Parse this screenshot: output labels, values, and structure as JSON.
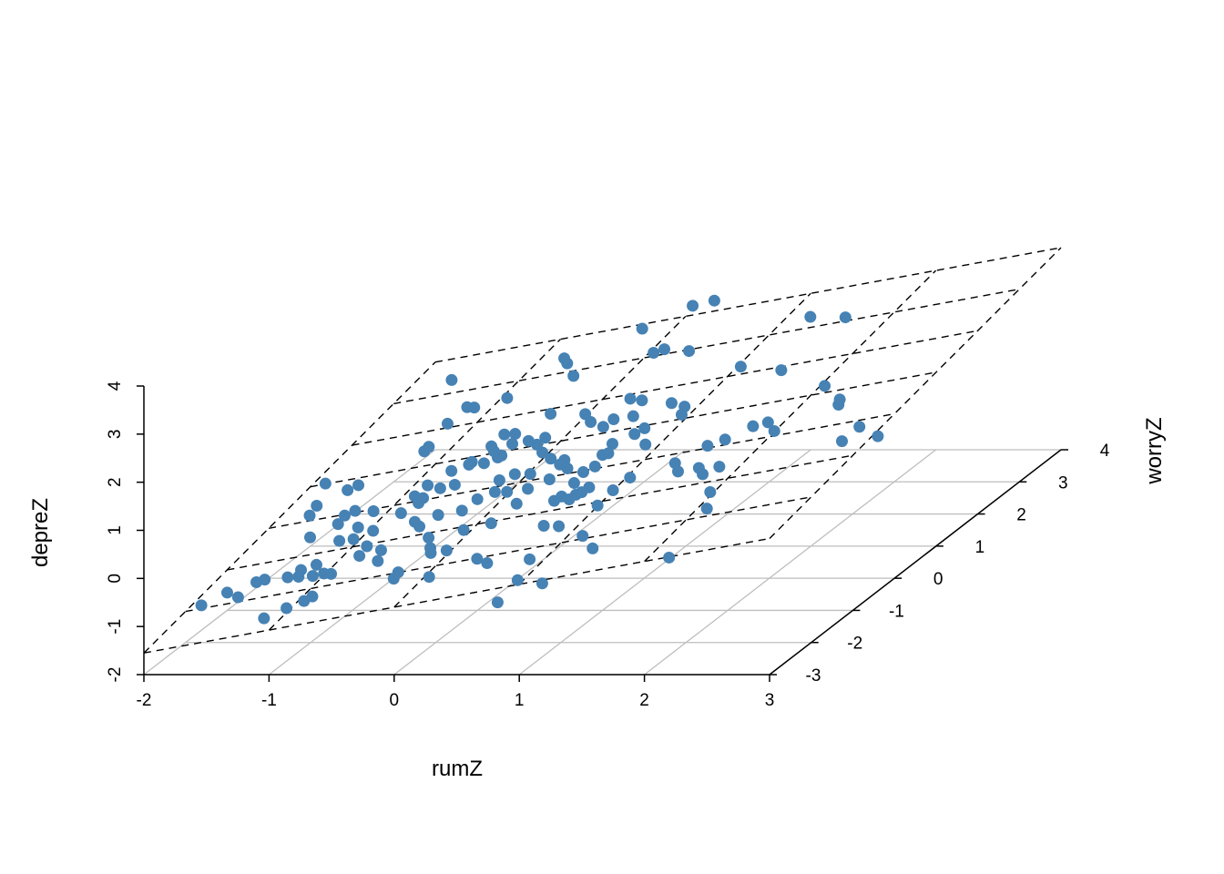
{
  "chart_data": {
    "type": "scatter3d",
    "xlabel": "rumZ",
    "ylabel": "worryZ",
    "zlabel": "depreZ",
    "xlim": [
      -2,
      3
    ],
    "ylim": [
      -3,
      4
    ],
    "zlim": [
      -2,
      4
    ],
    "x_ticks": [
      "-2",
      "-1",
      "0",
      "1",
      "2",
      "3"
    ],
    "y_ticks": [
      "-3",
      "-2",
      "-1",
      "0",
      "1",
      "2",
      "3",
      "4"
    ],
    "z_ticks": [
      "-2",
      "-1",
      "0",
      "1",
      "2",
      "3",
      "4"
    ],
    "grid": true,
    "point_color": "#4682B4",
    "grid_color": "#BEBEBE",
    "regression_plane": {
      "intercept": -0.01,
      "rumZ": 0.476,
      "worryZ": 0.196,
      "line_style": "dashed"
    },
    "points": [
      [
        -1.9,
        -1.92,
        -1.28
      ],
      [
        -1.77,
        -1.69,
        -1.17
      ],
      [
        -1.62,
        -1.88,
        -1.14
      ],
      [
        -1.59,
        -1.53,
        -1.06
      ],
      [
        -1.53,
        -1.51,
        -1.02
      ],
      [
        -1.16,
        -2.64,
        -1.07
      ],
      [
        -1.04,
        -2.46,
        -0.98
      ],
      [
        -1.33,
        -1.56,
        -0.94
      ],
      [
        -1.27,
        -1.42,
        -0.88
      ],
      [
        -1.23,
        -1.6,
        -0.9
      ],
      [
        -0.94,
        -2.34,
        -0.91
      ],
      [
        -0.9,
        -2.26,
        -0.87
      ],
      [
        -1.1,
        -1.65,
        -0.85
      ],
      [
        -1.17,
        -1.35,
        -0.82
      ],
      [
        -1.01,
        -1.65,
        -0.8
      ],
      [
        -0.94,
        -1.69,
        -0.78
      ],
      [
        -1.5,
        -0.51,
        -0.81
      ],
      [
        -1.72,
        0.14,
        -0.79
      ],
      [
        -1.75,
        0.4,
        -0.76
      ],
      [
        -1.88,
        1.0,
        -0.7
      ],
      [
        -1.36,
        -0.26,
        -0.7
      ],
      [
        -1.38,
        -0.04,
        -0.67
      ],
      [
        -1.18,
        -0.77,
        -0.71
      ],
      [
        -1.6,
        0.69,
        -0.63
      ],
      [
        -1.54,
        0.77,
        -0.58
      ],
      [
        -1.32,
        0.03,
        -0.62
      ],
      [
        -1.13,
        -0.47,
        -0.63
      ],
      [
        -1.06,
        -0.79,
        -0.66
      ],
      [
        -0.84,
        -1.31,
        -0.66
      ],
      [
        -0.86,
        -1.07,
        -0.62
      ],
      [
        -0.95,
        -0.65,
        -0.58
      ],
      [
        -1.14,
        -0.07,
        -0.56
      ],
      [
        -0.61,
        -1.56,
        -0.6
      ],
      [
        -0.68,
        -1.27,
        -0.57
      ],
      [
        -0.28,
        -2.17,
        -0.56
      ],
      [
        -0.3,
        -2.0,
        -0.54
      ],
      [
        -0.85,
        -0.28,
        -0.46
      ],
      [
        -0.63,
        -0.61,
        -0.42
      ],
      [
        -0.54,
        -0.77,
        -0.41
      ],
      [
        -0.78,
        -0.07,
        -0.39
      ],
      [
        -0.78,
        0.04,
        -0.36
      ],
      [
        -1.23,
        1.42,
        -0.31
      ],
      [
        -1.23,
        1.53,
        -0.29
      ],
      [
        -0.86,
        0.39,
        -0.33
      ],
      [
        -0.34,
        -1.15,
        -0.39
      ],
      [
        -0.22,
        -1.47,
        -0.39
      ],
      [
        -0.17,
        -1.61,
        -0.4
      ],
      [
        0.05,
        -2.31,
        -0.43
      ],
      [
        -0.47,
        -0.53,
        -0.33
      ],
      [
        -0.71,
        0.24,
        -0.29
      ],
      [
        -0.04,
        -1.62,
        -0.34
      ],
      [
        -1.66,
        3.37,
        -0.13
      ],
      [
        -1.27,
        2.1,
        -0.19
      ],
      [
        -0.77,
        0.69,
        -0.23
      ],
      [
        -0.6,
        0.26,
        -0.23
      ],
      [
        -0.28,
        -0.53,
        -0.24
      ],
      [
        -0.07,
        -1.12,
        -0.25
      ],
      [
        -1.24,
        2.48,
        -0.1
      ],
      [
        -1.17,
        2.44,
        -0.08
      ],
      [
        -0.66,
        0.78,
        -0.16
      ],
      [
        -0.66,
        0.85,
        -0.15
      ],
      [
        -0.24,
        -0.28,
        -0.17
      ],
      [
        0.34,
        -2.03,
        -0.24
      ],
      [
        0.48,
        -2.21,
        -0.21
      ],
      [
        0.13,
        -1.06,
        -0.15
      ],
      [
        -0.62,
        1.2,
        -0.06
      ],
      [
        -0.55,
        1.05,
        -0.06
      ],
      [
        0.97,
        -3.43,
        -0.21
      ],
      [
        -0.14,
        -0.16,
        -0.1
      ],
      [
        -0.21,
        0.16,
        -0.07
      ],
      [
        -0.43,
        0.87,
        -0.03
      ],
      [
        -0.94,
        2.54,
        0.05
      ],
      [
        -0.61,
        1.48,
        0.0
      ],
      [
        -0.02,
        -0.23,
        -0.05
      ],
      [
        -0.12,
        0.26,
        -0.01
      ],
      [
        -0.51,
        1.44,
        0.04
      ],
      [
        0.19,
        -0.63,
        -0.03
      ],
      [
        0.95,
        -2.89,
        -0.11
      ],
      [
        0.86,
        -2.33,
        -0.05
      ],
      [
        0.15,
        -0.24,
        0.02
      ],
      [
        0.03,
        0.18,
        0.05
      ],
      [
        -0.19,
        1.0,
        0.11
      ],
      [
        -0.06,
        0.74,
        0.12
      ],
      [
        1.22,
        -3.11,
        -0.03
      ],
      [
        0.67,
        -1.42,
        0.04
      ],
      [
        -0.18,
        1.17,
        0.14
      ],
      [
        -0.36,
        1.84,
        0.19
      ],
      [
        0.27,
        -0.08,
        0.11
      ],
      [
        0.53,
        -0.75,
        0.11
      ],
      [
        0.82,
        -1.51,
        0.09
      ],
      [
        0.56,
        -0.66,
        0.14
      ],
      [
        -0.77,
        3.4,
        0.3
      ],
      [
        -0.69,
        3.23,
        0.31
      ],
      [
        -0.51,
        2.84,
        0.31
      ],
      [
        0.23,
        0.4,
        0.19
      ],
      [
        0.34,
        0.14,
        0.19
      ],
      [
        0.71,
        -0.63,
        0.21
      ],
      [
        1.15,
        -1.93,
        0.17
      ],
      [
        1.37,
        -2.35,
        0.19
      ],
      [
        -0.02,
        1.65,
        0.31
      ],
      [
        0.11,
        1.39,
        0.32
      ],
      [
        1.0,
        -1.12,
        0.26
      ],
      [
        0.53,
        -0.05,
        0.24
      ],
      [
        0.59,
        0.05,
        0.29
      ],
      [
        0.28,
        1.18,
        0.36
      ],
      [
        0.55,
        0.35,
        0.33
      ],
      [
        0.59,
        0.37,
        0.35
      ],
      [
        0.54,
        0.62,
        0.38
      ],
      [
        0.31,
        1.34,
        0.41
      ],
      [
        1.0,
        -0.75,
        0.33
      ],
      [
        1.04,
        -0.46,
        0.4
      ],
      [
        0.27,
        1.86,
        0.49
      ],
      [
        0.47,
        1.33,
        0.48
      ],
      [
        0.66,
        0.79,
        0.47
      ],
      [
        0.4,
        1.75,
        0.53
      ],
      [
        -0.3,
        3.86,
        0.61
      ],
      [
        0.7,
        0.91,
        0.51
      ],
      [
        0.87,
        0.42,
        0.5
      ],
      [
        0.05,
        3.08,
        0.63
      ],
      [
        0.12,
        3.13,
        0.67
      ],
      [
        2.21,
        -3.04,
        0.46
      ],
      [
        0.72,
        1.5,
        0.64
      ],
      [
        1.34,
        -0.28,
        0.58
      ],
      [
        1.45,
        -0.54,
        0.58
      ],
      [
        0.93,
        1.11,
        0.66
      ],
      [
        0.88,
        1.33,
        0.68
      ],
      [
        0.38,
        2.94,
        0.76
      ],
      [
        -0.03,
        4.26,
        0.82
      ],
      [
        1.62,
        -0.55,
        0.66
      ],
      [
        1.72,
        -0.76,
        0.67
      ],
      [
        2.1,
        -1.8,
        0.65
      ],
      [
        1.49,
        0.05,
        0.72
      ],
      [
        1.97,
        -1.33,
        0.68
      ],
      [
        0.13,
        4.3,
        0.9
      ],
      [
        1.81,
        -0.63,
        0.74
      ],
      [
        1.6,
        0.14,
        0.79
      ],
      [
        1.04,
        2.2,
        0.93
      ],
      [
        1.74,
        0.39,
        0.9
      ],
      [
        1.85,
        0.42,
        0.96
      ],
      [
        2.0,
        0.12,
        0.98
      ],
      [
        1.47,
        1.88,
        1.07
      ],
      [
        1.23,
        3.3,
        1.23
      ],
      [
        2.05,
        1.18,
        1.21
      ],
      [
        2.37,
        0.55,
        1.24
      ],
      [
        2.33,
        0.7,
        1.25
      ],
      [
        2.76,
        -0.54,
        1.21
      ],
      [
        1.58,
        3.09,
        1.36
      ],
      [
        2.79,
        -0.21,
        1.29
      ],
      [
        3.06,
        -0.58,
        1.34
      ],
      [
        -0.31,
        1.16,
        0.08
      ],
      [
        0.08,
        0.52,
        0.14
      ],
      [
        0.23,
        0.29,
        0.17
      ],
      [
        0.66,
        -0.78,
        0.16
      ],
      [
        0.55,
        -0.33,
        0.2
      ],
      [
        0.74,
        -0.54,
        0.25
      ],
      [
        0.68,
        -0.68,
        0.19
      ],
      [
        -0.45,
        0.84,
        -0.05
      ],
      [
        -0.53,
        0.75,
        -0.11
      ],
      [
        -0.44,
        1.16,
        0.02
      ],
      [
        -0.88,
        0.14,
        -0.39
      ]
    ]
  }
}
